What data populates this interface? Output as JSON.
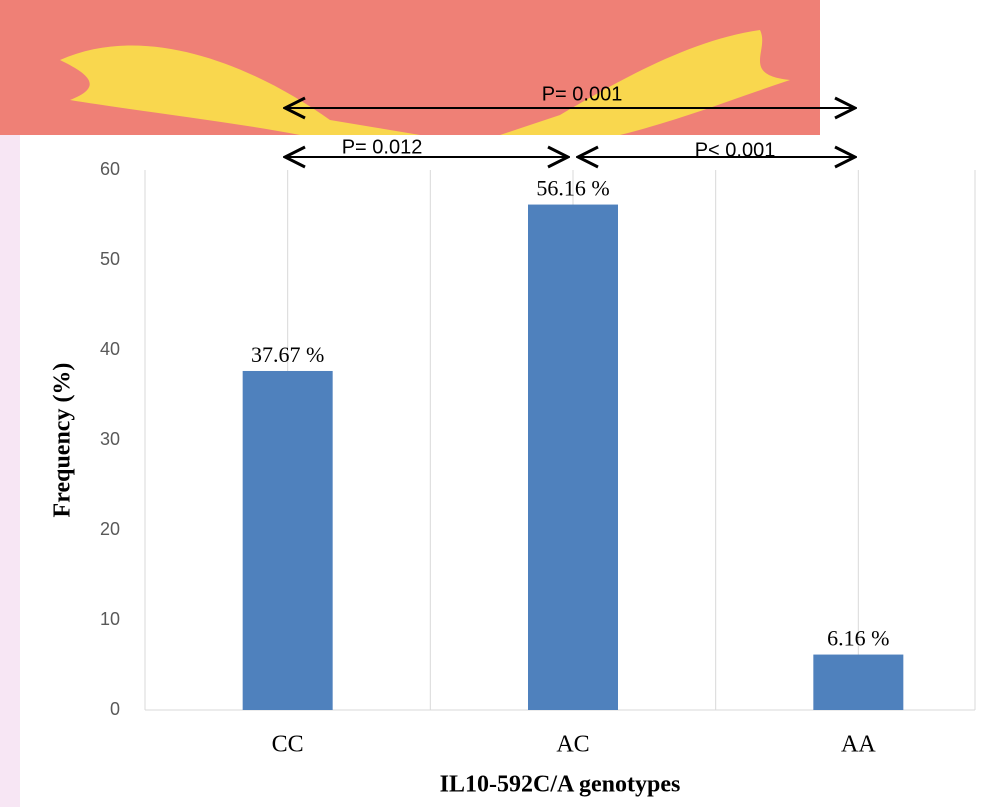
{
  "chart_data": {
    "type": "bar",
    "x_label": "IL10-592C/A genotypes",
    "y_label": "Frequency (%)",
    "categories": [
      "CC",
      "AC",
      "AA"
    ],
    "values": [
      37.67,
      56.16,
      6.16
    ],
    "value_labels": [
      "37.67 %",
      "56.16 %",
      "6.16 %"
    ],
    "color": "#4f81bd",
    "ylim": [
      0,
      60
    ],
    "yticks": [
      0,
      10,
      20,
      30,
      40,
      50,
      60
    ],
    "grid": true,
    "annotations": [
      "P= 0.001",
      "P= 0.012",
      "P< 0.001"
    ]
  }
}
